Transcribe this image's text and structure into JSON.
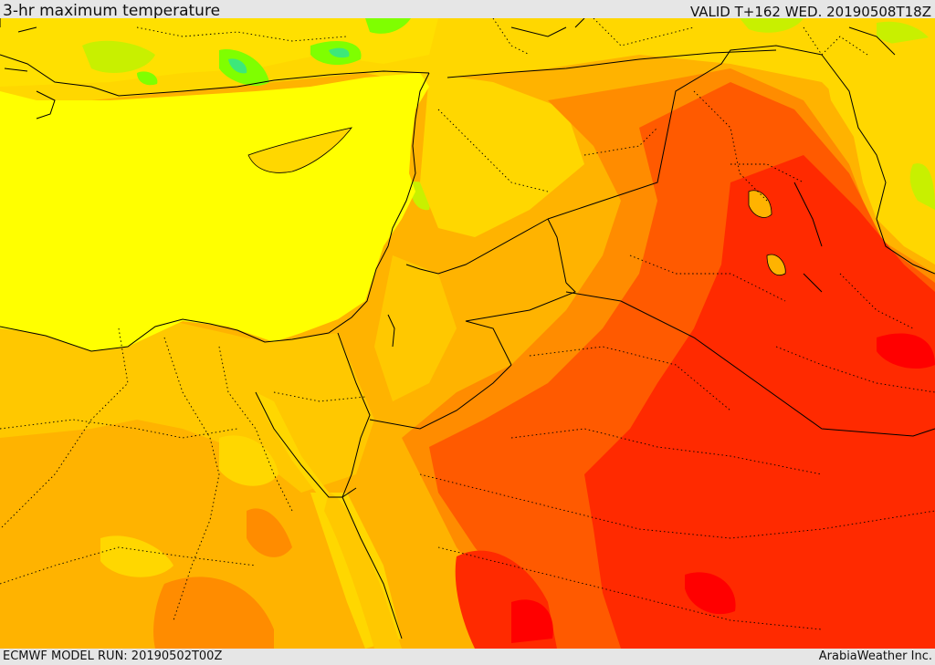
{
  "header": {
    "title": "3-hr maximum temperature",
    "valid": "VALID T+162 WED. 20190508T18Z"
  },
  "footer": {
    "model_run": "ECMWF MODEL RUN: 20190502T00Z",
    "credit": "ArabiaWeather Inc."
  },
  "map": {
    "variable": "3-hr maximum temperature",
    "colors": {
      "sea": "#ffff00",
      "green": "#7fff00",
      "bright_green": "#3de87a",
      "yellow_green": "#c8f000",
      "gold": "#ffd700",
      "amber": "#ffb300",
      "orange": "#ff8c00",
      "dark_orange": "#ff5a00",
      "red": "#ff2a00",
      "deep_red": "#ff0000",
      "border": "#000000"
    }
  }
}
